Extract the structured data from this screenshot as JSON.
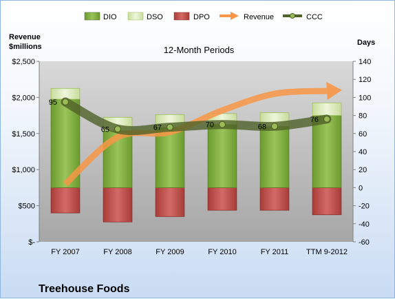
{
  "chart_data": {
    "type": "bar",
    "title": "",
    "subtitle": "12-Month Periods",
    "company": "Treehouse Foods",
    "left_axis_label": [
      "Revenue",
      "$millions"
    ],
    "right_axis_label": "Days",
    "categories": [
      "FY 2007",
      "FY 2008",
      "FY 2009",
      "FY 2010",
      "FY 2011",
      "TTM 9-2012"
    ],
    "left_ticks": [
      "$-",
      "$500",
      "$1,000",
      "$1,500",
      "$2,000",
      "$2,500"
    ],
    "left_ylim": [
      0,
      2500
    ],
    "right_ticks": [
      "-60",
      "-40",
      "-20",
      "0",
      "20",
      "40",
      "60",
      "80",
      "100",
      "120",
      "140"
    ],
    "right_ylim": [
      -60,
      140
    ],
    "grid": false,
    "legend_position": "top",
    "stacked_series": [
      {
        "name": "DIO",
        "axis": "days",
        "values": [
          98,
          63,
          67,
          70,
          68,
          80
        ],
        "color": "#7aa638"
      },
      {
        "name": "DSO",
        "axis": "days",
        "values": [
          12,
          15,
          14,
          12,
          15,
          14
        ],
        "color": "#d7e8b4"
      },
      {
        "name": "DPO",
        "axis": "days",
        "values": [
          -28,
          -38,
          -32,
          -25,
          -25,
          -30
        ],
        "color": "#c0504d"
      }
    ],
    "line_series": [
      {
        "name": "Revenue",
        "axis": "revenue",
        "values": [
          800,
          1450,
          1520,
          1820,
          2050,
          2090
        ],
        "color": "#f79646",
        "style": "arrow"
      },
      {
        "name": "CCC",
        "axis": "days",
        "values": [
          95,
          65,
          67,
          70,
          68,
          76
        ],
        "color": "#4f6228",
        "style": "marker-line"
      }
    ],
    "data_labels": [
      "95",
      "65",
      "67",
      "70",
      "68",
      "76"
    ]
  },
  "colors": {
    "dio": "#7aa638",
    "dso": "#d7e8b4",
    "dpo": "#c0504d",
    "revenue": "#f79646",
    "ccc": "#4f6228",
    "plot_bg": "#bfbfbf"
  }
}
